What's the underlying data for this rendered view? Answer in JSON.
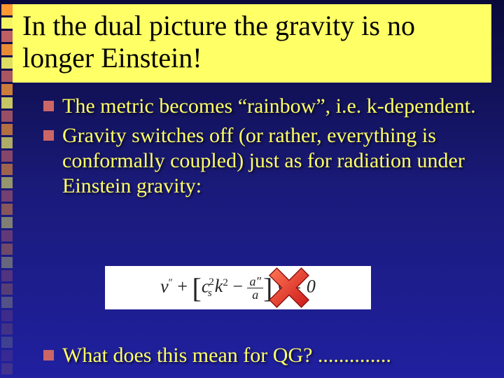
{
  "slide": {
    "background_gradient": [
      "#0a0a3a",
      "#1a1a7a",
      "#2020a0"
    ],
    "title_bg": "#ffff66",
    "title_color": "#000000",
    "text_color": "#ffff66",
    "bullet_color": "#cc6666",
    "decoration_colors": [
      "#ff9933",
      "#9966cc",
      "#ffff66",
      "#66cc66",
      "#cc6666",
      "#6699ff"
    ]
  },
  "title": "In the dual picture the gravity is no longer Einstein!",
  "bullets": [
    "The metric becomes “rainbow”, i.e. k-dependent.",
    "Gravity switches off (or rather, everything is conformally coupled) just as for radiation under Einstein gravity:"
  ],
  "equation": {
    "background": "#ffffff",
    "text_color": "#222222",
    "parts": {
      "v": "v",
      "dprime": "″",
      "plus": " + ",
      "cs": "c",
      "s_sub": "s",
      "sq": "2",
      "k": "k",
      "minus": " − ",
      "a_num": "a″",
      "a_den": "a",
      "eq0": " v = 0"
    }
  },
  "red_x": {
    "color": "#e03030",
    "highlight": "#ff6644"
  },
  "bottom": "What does this mean for QG? .............."
}
